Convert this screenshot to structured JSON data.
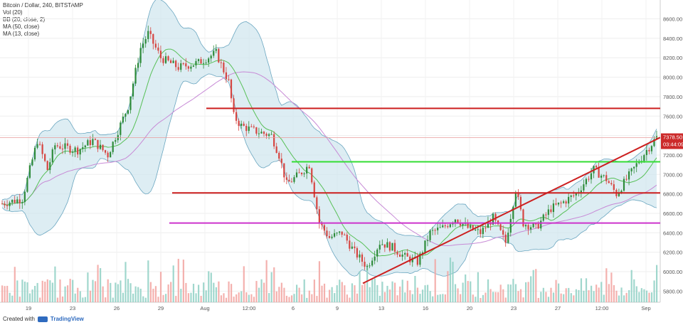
{
  "legend": {
    "line1": "Bitcoin / Dollar, 240, BITSTAMP",
    "line2": "Vol (20)",
    "line3": "BB (20, close, 2)",
    "line4": "MA (50, close)",
    "line5": "MA (13, close)"
  },
  "footer": {
    "created_with": "Created with",
    "brand": "TradingView"
  },
  "price_tag": {
    "price": "7378.50",
    "time": "03:44:09"
  },
  "colors": {
    "up": "#2e8b3a",
    "down": "#d64541",
    "bb_fill": "#cfe6ee",
    "bb_line": "#6aa6c0",
    "ma50": "#c78ad6",
    "ma13": "#58c058",
    "resistance_red": "#cc1f1f",
    "support_green": "#33dd33",
    "support_magenta": "#cc33cc",
    "tag_bg": "#cc2a2a"
  },
  "chart_data": {
    "type": "candlestick",
    "ylim": [
      5700,
      8700
    ],
    "y_ticks": [
      5800,
      6000,
      6200,
      6400,
      6600,
      6800,
      7000,
      7200,
      7400,
      7600,
      7800,
      8000,
      8200,
      8400,
      8600
    ],
    "x_ticks": [
      "19",
      "23",
      "26",
      "29",
      "Aug",
      "12:00",
      "6",
      "9",
      "13",
      "16",
      "20",
      "23",
      "27",
      "12:00",
      "Sep"
    ],
    "price_path": [
      [
        0,
        6700
      ],
      [
        8,
        6750
      ],
      [
        14,
        7350
      ],
      [
        18,
        7050
      ],
      [
        21,
        7300
      ],
      [
        30,
        7250
      ],
      [
        36,
        7350
      ],
      [
        42,
        7200
      ],
      [
        50,
        7700
      ],
      [
        55,
        8300
      ],
      [
        58,
        8450
      ],
      [
        63,
        8200
      ],
      [
        70,
        8100
      ],
      [
        78,
        8150
      ],
      [
        85,
        8250
      ],
      [
        90,
        7950
      ],
      [
        92,
        7600
      ],
      [
        95,
        7500
      ],
      [
        100,
        7450
      ],
      [
        107,
        7400
      ],
      [
        110,
        7200
      ],
      [
        113,
        6900
      ],
      [
        118,
        7000
      ],
      [
        122,
        7100
      ],
      [
        126,
        6500
      ],
      [
        130,
        6350
      ],
      [
        135,
        6400
      ],
      [
        140,
        6200
      ],
      [
        145,
        6050
      ],
      [
        150,
        6300
      ],
      [
        155,
        6250
      ],
      [
        160,
        6150
      ],
      [
        165,
        6100
      ],
      [
        170,
        6400
      ],
      [
        175,
        6450
      ],
      [
        180,
        6550
      ],
      [
        185,
        6450
      ],
      [
        190,
        6400
      ],
      [
        195,
        6550
      ],
      [
        200,
        6300
      ],
      [
        204,
        6850
      ],
      [
        207,
        6500
      ],
      [
        212,
        6450
      ],
      [
        218,
        6650
      ],
      [
        222,
        6700
      ],
      [
        228,
        6800
      ],
      [
        235,
        7050
      ],
      [
        240,
        6950
      ],
      [
        244,
        6800
      ],
      [
        248,
        6950
      ],
      [
        252,
        7100
      ],
      [
        256,
        7250
      ],
      [
        260,
        7380
      ]
    ],
    "hlines": [
      {
        "price": 7680,
        "color_key": "resistance_red"
      },
      {
        "price": 7130,
        "color_key": "support_green"
      },
      {
        "price": 6810,
        "color_key": "resistance_red"
      },
      {
        "price": 6500,
        "color_key": "support_magenta"
      }
    ],
    "trendline": {
      "from": [
        5880,
        "Aug 13"
      ],
      "to": [
        7380,
        "Sep 1"
      ],
      "color_key": "resistance_red"
    },
    "last_price": 7378.5
  }
}
